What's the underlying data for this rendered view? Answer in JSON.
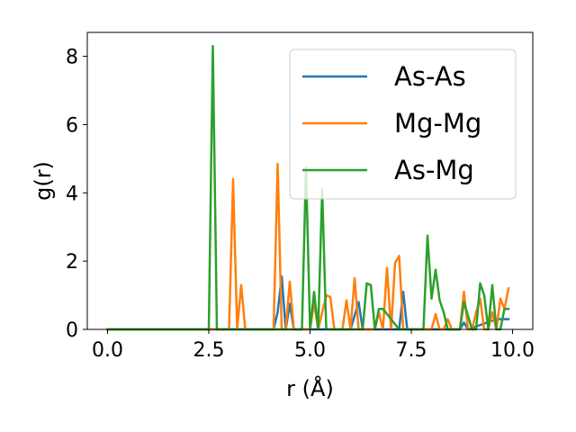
{
  "chart_data": {
    "type": "line",
    "xlabel": "r (Å)",
    "ylabel": "g(r)",
    "xlim": [
      -0.5,
      10.5
    ],
    "ylim": [
      0,
      8.7
    ],
    "xticks": [
      0.0,
      2.5,
      5.0,
      7.5,
      10.0
    ],
    "xtick_labels": [
      "0.0",
      "2.5",
      "5.0",
      "7.5",
      "10.0"
    ],
    "yticks": [
      0,
      2,
      4,
      6,
      8
    ],
    "ytick_labels": [
      "0",
      "2",
      "4",
      "6",
      "8"
    ],
    "grid": false,
    "legend_position": "top-right",
    "series": [
      {
        "name": "As-As",
        "color": "#1f77b4",
        "x": [
          0.0,
          4.1,
          4.2,
          4.3,
          4.4,
          4.5,
          4.6,
          4.7,
          6.0,
          6.1,
          6.2,
          6.3,
          7.2,
          7.3,
          7.4,
          8.7,
          8.8,
          8.9,
          9.6,
          9.9
        ],
        "y": [
          0.0,
          0.0,
          0.5,
          1.55,
          0.0,
          0.75,
          0.0,
          0.0,
          0.0,
          0.4,
          0.8,
          0.0,
          0.0,
          1.1,
          0.0,
          0.0,
          0.2,
          0.0,
          0.3,
          0.3
        ]
      },
      {
        "name": "Mg-Mg",
        "color": "#ff7f0e",
        "x": [
          0.0,
          3.0,
          3.1,
          3.2,
          3.3,
          3.4,
          4.1,
          4.2,
          4.3,
          4.4,
          4.5,
          4.6,
          5.0,
          5.1,
          5.2,
          5.3,
          5.4,
          5.5,
          5.6,
          5.7,
          5.8,
          5.9,
          6.0,
          6.1,
          6.2,
          6.3,
          6.4,
          6.5,
          6.6,
          6.7,
          6.8,
          6.9,
          7.0,
          7.1,
          7.2,
          7.3,
          7.4,
          7.5,
          7.6,
          7.7,
          7.8,
          7.9,
          8.0,
          8.1,
          8.2,
          8.3,
          8.4,
          8.5,
          8.6,
          8.7,
          8.8,
          8.9,
          9.0,
          9.1,
          9.2,
          9.3,
          9.4,
          9.5,
          9.6,
          9.7,
          9.8,
          9.9
        ],
        "y": [
          0.0,
          0.0,
          4.4,
          0.0,
          1.3,
          0.0,
          0.0,
          4.85,
          0.0,
          0.0,
          1.4,
          0.0,
          0.0,
          0.8,
          0.0,
          0.5,
          1.0,
          0.95,
          0.0,
          0.0,
          0.0,
          0.85,
          0.0,
          1.5,
          0.0,
          0.0,
          0.0,
          0.0,
          0.0,
          0.5,
          0.0,
          1.8,
          0.0,
          1.95,
          2.15,
          0.0,
          0.0,
          0.0,
          0.0,
          0.0,
          0.0,
          0.0,
          0.0,
          0.45,
          0.0,
          0.0,
          0.3,
          0.0,
          0.0,
          0.0,
          1.1,
          0.0,
          0.0,
          0.5,
          0.9,
          0.0,
          0.0,
          0.5,
          0.0,
          0.9,
          0.6,
          1.2
        ]
      },
      {
        "name": "As-Mg",
        "color": "#2ca02c",
        "x": [
          0.0,
          2.5,
          2.6,
          2.7,
          2.8,
          4.8,
          4.9,
          5.0,
          5.1,
          5.2,
          5.3,
          5.4,
          6.3,
          6.4,
          6.5,
          6.6,
          6.7,
          6.8,
          7.2,
          7.3,
          7.4,
          7.5,
          7.6,
          7.7,
          7.8,
          7.9,
          8.0,
          8.1,
          8.2,
          8.3,
          8.4,
          8.5,
          8.6,
          8.7,
          8.8,
          8.9,
          9.0,
          9.1,
          9.2,
          9.3,
          9.4,
          9.5,
          9.6,
          9.7,
          9.8,
          9.9
        ],
        "y": [
          0.0,
          0.0,
          8.3,
          0.0,
          0.0,
          0.0,
          4.75,
          0.0,
          1.1,
          0.0,
          4.1,
          0.0,
          0.0,
          1.35,
          1.3,
          0.0,
          0.6,
          0.6,
          0.0,
          0.0,
          0.0,
          0.0,
          0.0,
          0.0,
          0.0,
          2.75,
          0.9,
          1.75,
          0.85,
          0.5,
          0.0,
          0.0,
          0.0,
          0.0,
          0.8,
          0.4,
          0.0,
          0.0,
          1.35,
          1.0,
          0.0,
          1.3,
          0.0,
          0.0,
          0.6,
          0.6
        ]
      }
    ]
  }
}
